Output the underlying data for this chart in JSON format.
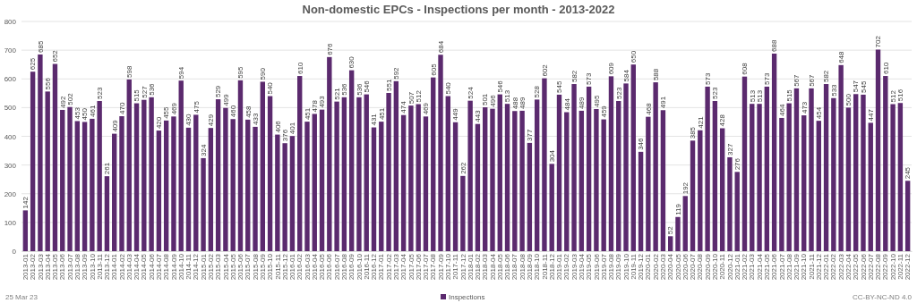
{
  "chart_data": {
    "type": "bar",
    "title": "Non-domestic EPCs - Inspections per month - 2013-2022",
    "categories": [
      "2013-01",
      "2013-02",
      "2013-03",
      "2013-04",
      "2013-05",
      "2013-06",
      "2013-07",
      "2013-08",
      "2013-09",
      "2013-10",
      "2013-11",
      "2013-12",
      "2014-01",
      "2014-02",
      "2014-03",
      "2014-04",
      "2014-05",
      "2014-06",
      "2014-07",
      "2014-08",
      "2014-09",
      "2014-10",
      "2014-11",
      "2014-12",
      "2015-01",
      "2015-02",
      "2015-03",
      "2015-04",
      "2015-05",
      "2015-06",
      "2015-07",
      "2015-08",
      "2015-09",
      "2015-10",
      "2015-11",
      "2015-12",
      "2016-01",
      "2016-02",
      "2016-03",
      "2016-04",
      "2016-05",
      "2016-06",
      "2016-07",
      "2016-08",
      "2016-09",
      "2016-10",
      "2016-11",
      "2016-12",
      "2017-01",
      "2017-02",
      "2017-03",
      "2017-04",
      "2017-05",
      "2017-06",
      "2017-07",
      "2017-08",
      "2017-09",
      "2017-10",
      "2017-11",
      "2017-12",
      "2018-01",
      "2018-02",
      "2018-03",
      "2018-04",
      "2018-05",
      "2018-06",
      "2018-07",
      "2018-08",
      "2018-09",
      "2018-10",
      "2018-11",
      "2018-12",
      "2019-01",
      "2019-02",
      "2019-03",
      "2019-04",
      "2019-05",
      "2019-06",
      "2019-07",
      "2019-08",
      "2019-09",
      "2019-10",
      "2019-11",
      "2019-12",
      "2020-01",
      "2020-02",
      "2020-03",
      "2020-04",
      "2020-05",
      "2020-06",
      "2020-07",
      "2020-08",
      "2020-09",
      "2020-10",
      "2020-11",
      "2020-12",
      "2021-01",
      "2021-02",
      "2021-03",
      "2021-04",
      "2021-05",
      "2021-06",
      "2021-07",
      "2021-08",
      "2021-09",
      "2021-10",
      "2021-11",
      "2021-12",
      "2022-01",
      "2022-02",
      "2022-03",
      "2022-04",
      "2022-05",
      "2022-06",
      "2022-07",
      "2022-08",
      "2022-09",
      "2022-10",
      "2022-11",
      "2022-12"
    ],
    "series": [
      {
        "name": "Inspections",
        "color": "#5b2a6e",
        "values": [
          142,
          625,
          685,
          556,
          652,
          492,
          502,
          453,
          450,
          461,
          523,
          261,
          409,
          470,
          598,
          515,
          527,
          536,
          420,
          455,
          469,
          594,
          430,
          475,
          324,
          429,
          529,
          499,
          460,
          595,
          458,
          433,
          590,
          540,
          406,
          376,
          401,
          610,
          451,
          478,
          493,
          676,
          521,
          536,
          630,
          536,
          546,
          431,
          451,
          551,
          592,
          474,
          507,
          512,
          469,
          605,
          684,
          540,
          449,
          262,
          524,
          443,
          501,
          496,
          546,
          513,
          488,
          489,
          377,
          528,
          602,
          304,
          545,
          484,
          582,
          489,
          573,
          495,
          459,
          609,
          523,
          584,
          650,
          346,
          468,
          588,
          491,
          52,
          119,
          192,
          385,
          421,
          573,
          523,
          428,
          327,
          276,
          608,
          513,
          513,
          573,
          688,
          464,
          515,
          567,
          473,
          567,
          454,
          582,
          533,
          648,
          500,
          547,
          545,
          447,
          702,
          610,
          512,
          516,
          245
        ]
      }
    ],
    "ylim": [
      0,
      800
    ],
    "yticks": [
      0,
      100,
      200,
      300,
      400,
      500,
      600,
      700,
      800
    ],
    "grid": "y",
    "legend": "bottom",
    "data_labels": true,
    "annotations": [
      "25 Mar 23",
      "CC-BY-NC-ND 4.0"
    ]
  }
}
